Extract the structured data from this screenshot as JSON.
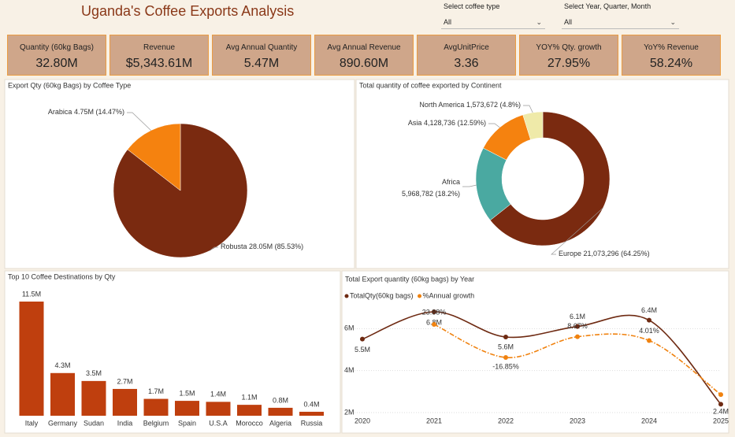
{
  "header": {
    "title": "Uganda's Coffee Exports Analysis"
  },
  "filters": [
    {
      "label": "Select coffee type",
      "value": "All"
    },
    {
      "label": "Select Year, Quarter, Month",
      "value": "All"
    }
  ],
  "kpis": [
    {
      "label": "Quantity (60kg Bags)",
      "value": "32.80M"
    },
    {
      "label": "Revenue",
      "value": "$5,343.61M"
    },
    {
      "label": "Avg Annual Quantity",
      "value": "5.47M"
    },
    {
      "label": "Avg Annual Revenue",
      "value": "890.60M"
    },
    {
      "label": "AvgUnitPrice",
      "value": "3.36"
    },
    {
      "label": "YOY% Qty. growth",
      "value": "27.95%"
    },
    {
      "label": "YoY% Revenue",
      "value": "58.24%"
    }
  ],
  "chart_data": [
    {
      "type": "pie",
      "title": "Export Qty (60kg Bags) by Coffee Type",
      "categories": [
        "Robusta",
        "Arabica"
      ],
      "values": [
        28050000,
        4750000
      ],
      "value_labels": [
        "28.05M (85.53%)",
        "4.75M (14.47%)"
      ],
      "colors": [
        "#7a2a10",
        "#f5820f"
      ]
    },
    {
      "type": "donut",
      "title": "Total quantity of coffee exported by Continent",
      "categories": [
        "Europe",
        "Africa",
        "Asia",
        "North America"
      ],
      "values": [
        21073296,
        5968782,
        4128736,
        1573672
      ],
      "value_labels": [
        "21,073,296 (64.25%)",
        "5,968,782 (18.2%)",
        "4,128,736 (12.59%)",
        "1,573,672 (4.8%)"
      ],
      "colors": [
        "#7a2a10",
        "#4aa9a1",
        "#f5820f",
        "#efeaa9"
      ]
    },
    {
      "type": "bar",
      "title": "Top 10 Coffee Destinations by Qty",
      "categories": [
        "Italy",
        "Germany",
        "Sudan",
        "India",
        "Belgium",
        "Spain",
        "U.S.A",
        "Morocco",
        "Algeria",
        "Russia"
      ],
      "values": [
        11500000,
        4300000,
        3500000,
        2700000,
        1700000,
        1500000,
        1400000,
        1100000,
        800000,
        400000
      ],
      "value_labels": [
        "11.5M",
        "4.3M",
        "3.5M",
        "2.7M",
        "1.7M",
        "1.5M",
        "1.4M",
        "1.1M",
        "0.8M",
        "0.4M"
      ],
      "color": "#bf3f0e"
    },
    {
      "type": "line",
      "title": "Total Export quantity (60kg bags) by Year",
      "x": [
        2020,
        2021,
        2022,
        2023,
        2024,
        2025
      ],
      "xlim": [
        2020,
        2025
      ],
      "xticks": [
        2020,
        2021,
        2022,
        2023,
        2024,
        2025
      ],
      "ylim": [
        1850000,
        7400000
      ],
      "yticks": [
        {
          "value": 2000000,
          "label": "2M"
        },
        {
          "value": 4000000,
          "label": "4M"
        },
        {
          "value": 6000000,
          "label": "6M"
        }
      ],
      "y2lim": [
        -88.6,
        54.9
      ],
      "grid": true,
      "series": [
        {
          "name": "TotalQty(60kg bags)",
          "color": "#6e2a12",
          "values": [
            5500000,
            6800000,
            5600000,
            6100000,
            6400000,
            2400000
          ],
          "value_labels": [
            "5.5M",
            "6.8M",
            "5.6M",
            "6.1M",
            "6.4M",
            "2.4M"
          ]
        },
        {
          "name": "%Annual growth",
          "color": "#f0820f",
          "axis": "y2",
          "dashed": true,
          "values": [
            null,
            23.88,
            -16.85,
            8.67,
            4.01,
            -62.5
          ],
          "value_labels": [
            null,
            "23.88%",
            "-16.85%",
            "8.67%",
            "4.01%",
            null
          ]
        }
      ]
    }
  ]
}
